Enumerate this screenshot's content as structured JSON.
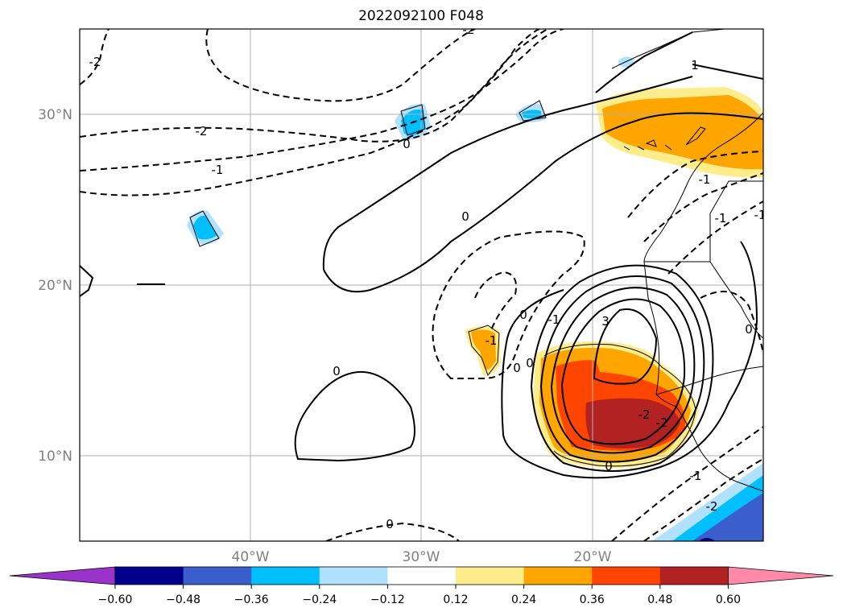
{
  "title": "2022092100 F048",
  "lat_labels": [
    "30°N",
    "20°N",
    "10°N"
  ],
  "lon_labels": [
    "40°W",
    "30°W",
    "20°W"
  ],
  "colorbar": {
    "ticks": [
      "−0.60",
      "−0.48",
      "−0.36",
      "−0.24",
      "−0.12",
      "0.12",
      "0.24",
      "0.36",
      "0.48",
      "0.60"
    ],
    "colors": [
      "#9933cc",
      "#00008b",
      "#3a5fcd",
      "#00bfff",
      "#b0e2ff",
      "#ffffff",
      "#ffec8b",
      "#ffa500",
      "#ff4500",
      "#b22222",
      "#ff89a8"
    ]
  },
  "contour_labels": {
    "solid": [
      "0",
      "0",
      "0",
      "0",
      "0",
      "0",
      "3",
      "1"
    ],
    "dashed": [
      "-2",
      "-2",
      "-1",
      "-1",
      "-2",
      "-1",
      "-1",
      "-1",
      "-1",
      "-2",
      "-1",
      "0",
      "0",
      "0",
      "-2",
      "-2"
    ]
  },
  "colors": {
    "frame": "#000000",
    "grid": "#b0b0b0",
    "contour": "#000000",
    "coast": "#000000"
  }
}
